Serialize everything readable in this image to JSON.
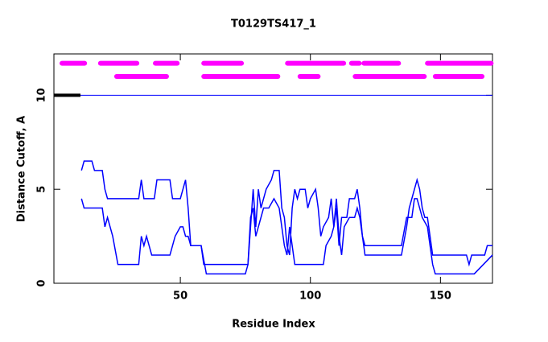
{
  "chart_data": {
    "type": "line",
    "title": "T0129TS417_1",
    "x_label": "Residue Index",
    "y_label": "Distance Cutoff, A",
    "xlim": [
      1.4,
      170
    ],
    "ylim": [
      0,
      12.2
    ],
    "xticks": [
      50,
      100,
      150
    ],
    "yticks": [
      0,
      5,
      10
    ],
    "series": [
      {
        "color": "#0000ff",
        "x": [
          12,
          13,
          16,
          17,
          20,
          21,
          22,
          34,
          35,
          36,
          40,
          41,
          46,
          47,
          50,
          52,
          53,
          54,
          58,
          59,
          76,
          78,
          79,
          80,
          81,
          83,
          85,
          86,
          88,
          89,
          90,
          91,
          92,
          93,
          94,
          95,
          96,
          98,
          99,
          100,
          102,
          103,
          104,
          105,
          107,
          108,
          109,
          110,
          111,
          112,
          114,
          115,
          117,
          118,
          119,
          120,
          121,
          135,
          137,
          138,
          139,
          140,
          141,
          142,
          143,
          144,
          145,
          146,
          147,
          160,
          161,
          162,
          167,
          168,
          170
        ],
        "values": [
          6.0,
          6.5,
          6.5,
          6.0,
          6.0,
          5.0,
          4.5,
          4.5,
          5.5,
          4.5,
          4.5,
          5.5,
          5.5,
          4.5,
          4.5,
          5.5,
          4.0,
          2.0,
          2.0,
          1.0,
          1.0,
          5.0,
          3.0,
          5.0,
          4.0,
          5.0,
          5.5,
          6.0,
          6.0,
          4.0,
          3.5,
          2.0,
          1.5,
          4.0,
          5.0,
          4.5,
          5.0,
          5.0,
          4.0,
          4.5,
          5.0,
          4.0,
          2.5,
          3.0,
          3.5,
          4.5,
          3.0,
          4.0,
          2.0,
          3.5,
          3.5,
          4.5,
          4.5,
          5.0,
          4.0,
          2.5,
          1.5,
          1.5,
          3.0,
          4.0,
          4.5,
          5.0,
          5.5,
          5.0,
          4.0,
          3.5,
          3.5,
          2.5,
          1.5,
          1.5,
          1.0,
          1.5,
          1.5,
          2.0,
          2.0
        ]
      },
      {
        "color": "#0000ff",
        "x": [
          12,
          13,
          20,
          21,
          22,
          24,
          26,
          34,
          35,
          36,
          37,
          38,
          39,
          46,
          48,
          50,
          51,
          52,
          53,
          54,
          58,
          60,
          75,
          76,
          77,
          78,
          79,
          80,
          81,
          82,
          84,
          86,
          88,
          89,
          90,
          91,
          92,
          93,
          94,
          105,
          106,
          108,
          109,
          110,
          111,
          112,
          113,
          115,
          117,
          118,
          119,
          120,
          121,
          135,
          137,
          139,
          140,
          141,
          142,
          143,
          145,
          146,
          147,
          148,
          163,
          170
        ],
        "values": [
          4.5,
          4.0,
          4.0,
          3.0,
          3.5,
          2.5,
          1.0,
          1.0,
          2.5,
          2.0,
          2.5,
          2.0,
          1.5,
          1.5,
          2.5,
          3.0,
          3.0,
          2.5,
          2.5,
          2.0,
          2.0,
          0.5,
          0.5,
          1.0,
          3.5,
          4.0,
          2.5,
          3.0,
          3.5,
          4.0,
          4.0,
          4.5,
          4.0,
          3.0,
          2.0,
          1.5,
          3.0,
          2.0,
          1.0,
          1.0,
          2.0,
          2.5,
          3.0,
          4.5,
          2.5,
          1.5,
          3.0,
          3.5,
          3.5,
          4.0,
          3.5,
          2.5,
          2.0,
          2.0,
          3.5,
          3.5,
          4.5,
          4.5,
          4.0,
          3.5,
          3.0,
          2.0,
          1.0,
          0.5,
          0.5,
          1.5
        ]
      }
    ],
    "segment_rows": [
      {
        "color": "#ff00ff",
        "y": 11.7,
        "spans": [
          [
            4.5,
            13.2
          ],
          [
            19.3,
            33.3
          ],
          [
            40.4,
            48.8
          ],
          [
            59,
            73.5
          ],
          [
            91.2,
            112.8
          ],
          [
            115.8,
            118.8
          ],
          [
            120.6,
            133.9
          ],
          [
            145,
            169.5
          ]
        ]
      },
      {
        "color": "#ff00ff",
        "y": 11.0,
        "spans": [
          [
            25.5,
            44.7
          ],
          [
            59,
            87.5
          ],
          [
            96,
            103
          ],
          [
            117.2,
            143.8
          ],
          [
            148,
            166
          ]
        ]
      }
    ],
    "threshold": 10,
    "threshold_color": "#0000ff",
    "threshold_mark": {
      "color": "#000000",
      "span": [
        1.4,
        11.6
      ]
    }
  }
}
